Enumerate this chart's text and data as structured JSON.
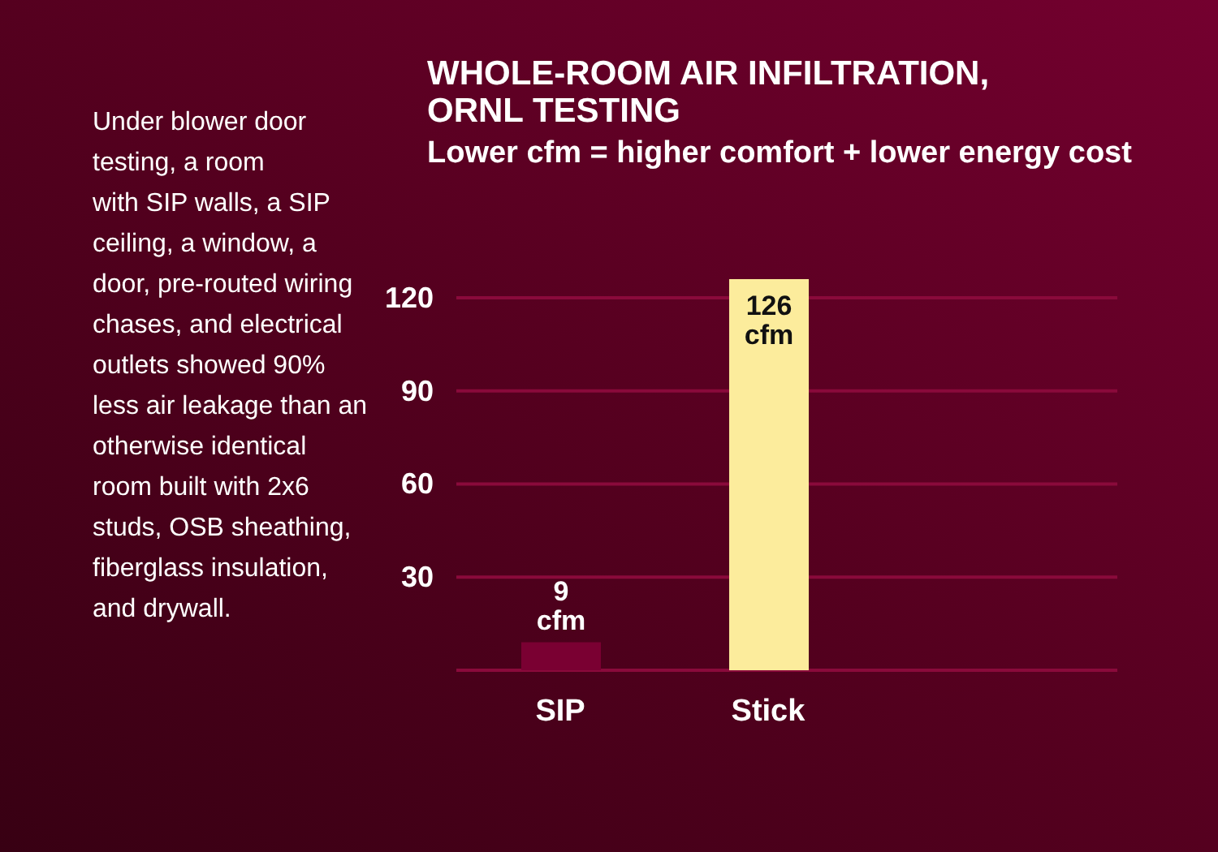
{
  "chart_data": {
    "type": "bar",
    "title": "WHOLE-ROOM AIR INFILTRATION, ORNL TESTING",
    "subtitle": "Lower cfm = higher comfort + lower energy cost",
    "annotations": [
      "Under blower door\ntesting, a room\nwith SIP walls, a SIP\nceiling, a window, a\ndoor, pre-routed wiring\nchases, and electrical\noutlets showed 90%\nless air leakage than an\notherwise identical\nroom built with 2x6\nstuds, OSB sheathing,\nfiberglass insulation,\nand drywall."
    ],
    "categories": [
      "SIP",
      "Stick"
    ],
    "values": [
      9,
      126
    ],
    "colors": [
      "#7a0032",
      "#fcec9c"
    ],
    "value_labels": [
      "9 cfm",
      "126 cfm"
    ],
    "ylim": [
      0,
      126
    ],
    "yticks": [
      {
        "value": 0,
        "label": null
      },
      30,
      60,
      90,
      120
    ],
    "grid": "y"
  }
}
